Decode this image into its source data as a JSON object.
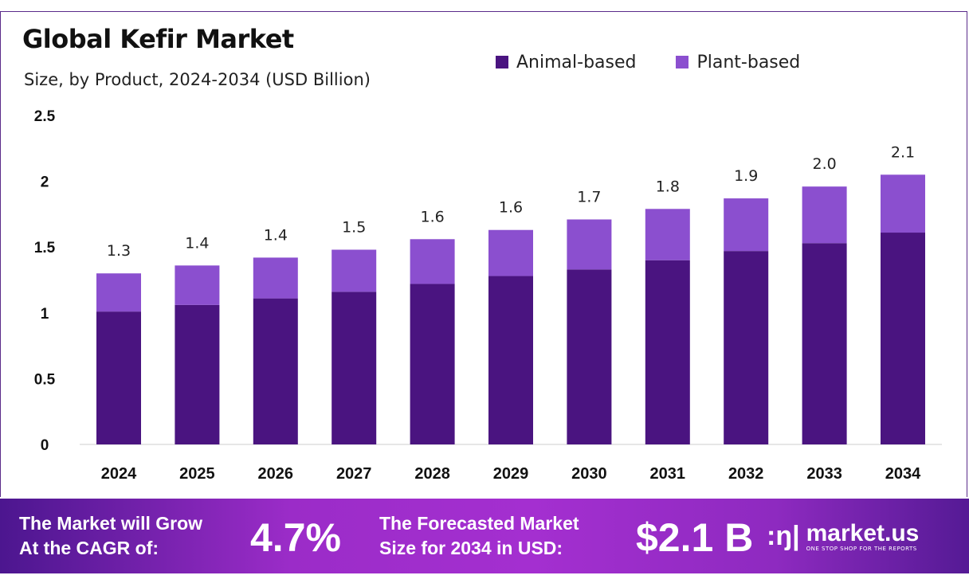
{
  "chart_data": {
    "type": "bar",
    "stacked": true,
    "title": "Global Kefir Market",
    "subtitle": "Size, by Product, 2024-2034 (USD Billion)",
    "categories": [
      "2024",
      "2025",
      "2026",
      "2027",
      "2028",
      "2029",
      "2030",
      "2031",
      "2032",
      "2033",
      "2034"
    ],
    "series": [
      {
        "name": "Animal-based",
        "color": "#4a1480",
        "values": [
          1.01,
          1.06,
          1.11,
          1.16,
          1.22,
          1.28,
          1.33,
          1.4,
          1.47,
          1.53,
          1.61
        ]
      },
      {
        "name": "Plant-based",
        "color": "#8b4fcf",
        "values": [
          0.29,
          0.3,
          0.31,
          0.32,
          0.34,
          0.35,
          0.38,
          0.39,
          0.4,
          0.43,
          0.44
        ]
      }
    ],
    "totals_labels": [
      "1.3",
      "1.4",
      "1.4",
      "1.5",
      "1.6",
      "1.6",
      "1.7",
      "1.8",
      "1.9",
      "2.0",
      "2.1"
    ],
    "yticks": [
      "0",
      "0.5",
      "1",
      "1.5",
      "2",
      "2.5"
    ],
    "ylim": [
      0,
      2.5
    ],
    "grid": false,
    "legend_position": "top-right"
  },
  "footer": {
    "cagr_line1": "The Market will Grow",
    "cagr_line2": "At the CAGR of:",
    "cagr_value": "4.7%",
    "forecast_line1": "The Forecasted Market",
    "forecast_line2": "Size for 2034 in USD:",
    "forecast_value": "$2.1 B",
    "logo_text": "market.us",
    "logo_tagline": "ONE STOP SHOP FOR THE REPORTS"
  }
}
